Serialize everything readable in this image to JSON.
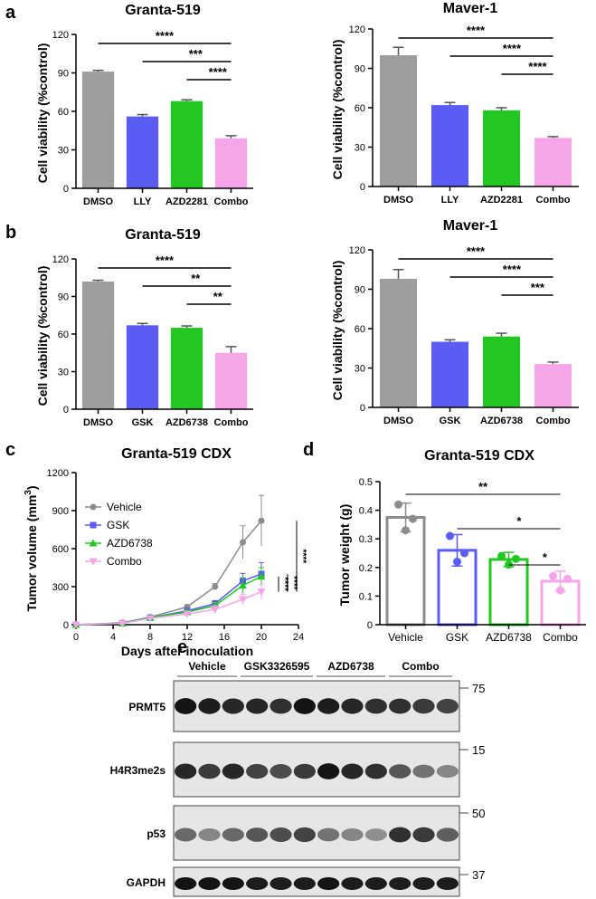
{
  "panel_letters": [
    "a",
    "b",
    "c",
    "d",
    "e"
  ],
  "colors": {
    "DMSO": "#9e9e9e",
    "Vehicle": "#8c8c8c",
    "LLY": "#5b5bf5",
    "GSK": "#5b5bf5",
    "AZD": "#22c722",
    "Combo": "#f5a5e8"
  },
  "chart_data": [
    {
      "id": "a1",
      "type": "bar",
      "title": "Granta-519",
      "ylabel": "Cell viability (%control)",
      "categories": [
        "DMSO",
        "LLY",
        "AZD2281",
        "Combo"
      ],
      "values": [
        91,
        56,
        68,
        39
      ],
      "errors": [
        1,
        1.5,
        1,
        2
      ],
      "ylim": [
        0,
        120
      ],
      "yticks": [
        "0",
        "30",
        "60",
        "90",
        "120"
      ],
      "significance": [
        {
          "from": 0,
          "to": 3,
          "label": "****"
        },
        {
          "from": 1,
          "to": 3,
          "label": "***"
        },
        {
          "from": 2,
          "to": 3,
          "label": "****"
        }
      ]
    },
    {
      "id": "a2",
      "type": "bar",
      "title": "Maver-1",
      "ylabel": "Cell viability (%control)",
      "categories": [
        "DMSO",
        "LLY",
        "AZD2281",
        "Combo"
      ],
      "values": [
        100,
        62,
        58,
        37
      ],
      "errors": [
        6,
        2,
        2,
        1
      ],
      "ylim": [
        0,
        120
      ],
      "yticks": [
        "0",
        "30",
        "60",
        "90",
        "120"
      ],
      "significance": [
        {
          "from": 0,
          "to": 3,
          "label": "****"
        },
        {
          "from": 1,
          "to": 3,
          "label": "****"
        },
        {
          "from": 2,
          "to": 3,
          "label": "****"
        }
      ]
    },
    {
      "id": "b1",
      "type": "bar",
      "title": "Granta-519",
      "ylabel": "Cell viability (%control)",
      "categories": [
        "DMSO",
        "GSK",
        "AZD6738",
        "Combo"
      ],
      "values": [
        102,
        67,
        65,
        45
      ],
      "errors": [
        1,
        1.5,
        1.5,
        5
      ],
      "ylim": [
        0,
        120
      ],
      "yticks": [
        "0",
        "30",
        "60",
        "90",
        "120"
      ],
      "significance": [
        {
          "from": 0,
          "to": 3,
          "label": "****"
        },
        {
          "from": 1,
          "to": 3,
          "label": "**"
        },
        {
          "from": 2,
          "to": 3,
          "label": "**"
        }
      ]
    },
    {
      "id": "b2",
      "type": "bar",
      "title": "Maver-1",
      "ylabel": "Cell viability (%control)",
      "categories": [
        "DMSO",
        "GSK",
        "AZD6738",
        "Combo"
      ],
      "values": [
        98,
        50,
        54,
        33
      ],
      "errors": [
        7,
        1.5,
        2.5,
        1.5
      ],
      "ylim": [
        0,
        120
      ],
      "yticks": [
        "0",
        "30",
        "60",
        "90",
        "120"
      ],
      "significance": [
        {
          "from": 0,
          "to": 3,
          "label": "****"
        },
        {
          "from": 1,
          "to": 3,
          "label": "****"
        },
        {
          "from": 2,
          "to": 3,
          "label": "***"
        }
      ]
    },
    {
      "id": "c",
      "type": "line",
      "title": "Granta-519 CDX",
      "xlabel": "Days after inoculation",
      "ylabel_main": "Tumor volume (mm",
      "ylabel_sup": "3",
      "ylabel_end": ")",
      "xlim": [
        0,
        24
      ],
      "ylim": [
        0,
        1200
      ],
      "xticks": [
        "0",
        "4",
        "8",
        "12",
        "16",
        "20",
        "24"
      ],
      "yticks": [
        "0",
        "300",
        "600",
        "900",
        "1200"
      ],
      "x": [
        0,
        5,
        8,
        12,
        15,
        18,
        20
      ],
      "series": [
        {
          "name": "Vehicle",
          "marker": "circle",
          "values": [
            0,
            15,
            60,
            140,
            300,
            650,
            820
          ],
          "errors": [
            0,
            3,
            8,
            15,
            25,
            130,
            200
          ]
        },
        {
          "name": "GSK",
          "marker": "square",
          "values": [
            0,
            12,
            55,
            110,
            165,
            345,
            400
          ],
          "errors": [
            0,
            3,
            8,
            15,
            25,
            60,
            90
          ]
        },
        {
          "name": "AZD6738",
          "marker": "triangle",
          "values": [
            0,
            12,
            55,
            100,
            150,
            310,
            380
          ],
          "errors": [
            0,
            3,
            8,
            15,
            25,
            60,
            70
          ]
        },
        {
          "name": "Combo",
          "marker": "invtriangle",
          "values": [
            0,
            10,
            50,
            85,
            120,
            200,
            260
          ],
          "errors": [
            0,
            3,
            8,
            15,
            30,
            40,
            60
          ]
        }
      ],
      "significance": [
        "****",
        "****",
        "****"
      ]
    },
    {
      "id": "d",
      "type": "bar",
      "title": "Granta-519 CDX",
      "ylabel": "Tumor weight (g)",
      "categories": [
        "Vehicle",
        "GSK",
        "AZD6738",
        "Combo"
      ],
      "values": [
        0.375,
        0.26,
        0.228,
        0.152
      ],
      "errors": [
        0.05,
        0.055,
        0.025,
        0.035
      ],
      "points": [
        [
          0.42,
          0.33,
          0.37
        ],
        [
          0.31,
          0.22,
          0.25
        ],
        [
          0.24,
          0.21,
          0.23
        ],
        [
          0.17,
          0.12,
          0.16
        ]
      ],
      "ylim": [
        0,
        0.5
      ],
      "yticks": [
        "0",
        "0.1",
        "0.2",
        "0.3",
        "0.4",
        "0.5"
      ],
      "significance": [
        {
          "from": 0,
          "to": 3,
          "label": "**"
        },
        {
          "from": 1,
          "to": 3,
          "label": "*"
        },
        {
          "from": 2,
          "to": 3,
          "label": "*"
        }
      ]
    }
  ],
  "blot": {
    "groups": [
      "Vehicle",
      "GSK3326595",
      "AZD6738",
      "Combo"
    ],
    "rows": [
      {
        "label": "PRMT5",
        "marker": "75",
        "intensity": [
          0.95,
          0.9,
          0.85,
          0.85,
          0.8,
          0.95,
          0.9,
          0.85,
          0.8,
          0.8,
          0.75,
          0.7
        ]
      },
      {
        "label": "H4R3me2s",
        "marker": "15",
        "intensity": [
          0.85,
          0.75,
          0.85,
          0.7,
          0.65,
          0.75,
          0.95,
          0.85,
          0.8,
          0.6,
          0.45,
          0.35
        ]
      },
      {
        "label": "p53",
        "marker": "50",
        "intensity": [
          0.5,
          0.35,
          0.5,
          0.6,
          0.65,
          0.7,
          0.45,
          0.35,
          0.3,
          0.8,
          0.75,
          0.55
        ]
      },
      {
        "label": "GAPDH",
        "marker": "37",
        "intensity": [
          0.95,
          0.95,
          0.95,
          0.9,
          0.9,
          0.9,
          0.95,
          0.9,
          0.9,
          0.9,
          0.9,
          0.9
        ]
      }
    ]
  }
}
